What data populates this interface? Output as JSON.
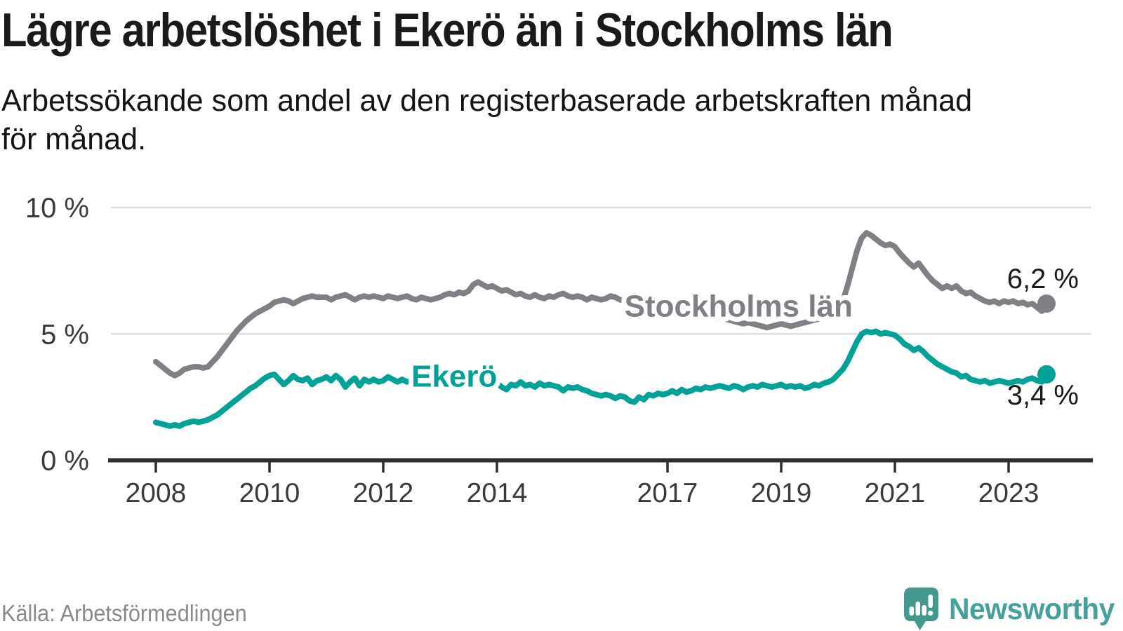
{
  "title": "Lägre arbetslöshet i Ekerö än i Stockholms län",
  "subtitle": "Arbetssökande som andel av den registerbaserade arbetskraften månad\nför månad.",
  "source": "Källa: Arbetsförmedlingen",
  "branding": {
    "wordmark": "Newsworthy",
    "wordmark_color": "#43a09b",
    "bubble_color": "#44998f"
  },
  "colors": {
    "axis": "#2e2e2e",
    "grid": "#dedede",
    "tick_text": "#3a3a3a",
    "annotation_text": "#1a1a1a"
  },
  "chart_data": {
    "type": "line",
    "title": "Lägre arbetslöshet i Ekerö än i Stockholms län",
    "subtitle": "Arbetssökande som andel av den registerbaserade arbetskraften månad för månad.",
    "x_unit": "month",
    "x_start": "2008-01",
    "x_end": "2023-09",
    "xlim": [
      2008,
      2023.75
    ],
    "ylim": [
      0,
      10
    ],
    "grid": "horizontal",
    "x_ticks": [
      2008,
      2010,
      2012,
      2014,
      2017,
      2019,
      2021,
      2023
    ],
    "y_ticks": [
      {
        "value": 0,
        "label": "0 %"
      },
      {
        "value": 5,
        "label": "5 %"
      },
      {
        "value": 10,
        "label": "10 %"
      }
    ],
    "series": [
      {
        "name": "Stockholms län",
        "color": "#7f7f85",
        "end_label": "6,2 %",
        "end_value": 6.2,
        "label_anchor": {
          "year": 2018.25,
          "pct": 6.1
        },
        "values": [
          3.9,
          3.75,
          3.6,
          3.45,
          3.35,
          3.45,
          3.6,
          3.65,
          3.7,
          3.7,
          3.65,
          3.7,
          3.9,
          4.1,
          4.35,
          4.6,
          4.85,
          5.1,
          5.3,
          5.5,
          5.65,
          5.8,
          5.9,
          6.0,
          6.1,
          6.25,
          6.3,
          6.35,
          6.3,
          6.2,
          6.3,
          6.4,
          6.45,
          6.5,
          6.45,
          6.45,
          6.45,
          6.35,
          6.45,
          6.5,
          6.55,
          6.45,
          6.35,
          6.45,
          6.5,
          6.45,
          6.5,
          6.45,
          6.4,
          6.5,
          6.45,
          6.4,
          6.45,
          6.5,
          6.4,
          6.35,
          6.45,
          6.4,
          6.35,
          6.4,
          6.45,
          6.55,
          6.6,
          6.55,
          6.65,
          6.6,
          6.7,
          6.95,
          7.05,
          6.95,
          6.85,
          6.9,
          6.8,
          6.7,
          6.75,
          6.65,
          6.55,
          6.6,
          6.5,
          6.45,
          6.55,
          6.45,
          6.4,
          6.5,
          6.45,
          6.55,
          6.6,
          6.5,
          6.45,
          6.5,
          6.45,
          6.35,
          6.45,
          6.4,
          6.35,
          6.4,
          6.5,
          6.45,
          6.35,
          6.3,
          6.25,
          6.3,
          6.2,
          6.15,
          6.1,
          6.05,
          6.0,
          6.05,
          6.0,
          5.95,
          5.9,
          5.85,
          5.8,
          5.85,
          5.8,
          5.75,
          5.7,
          5.65,
          5.6,
          5.65,
          5.6,
          5.55,
          5.5,
          5.45,
          5.4,
          5.45,
          5.4,
          5.35,
          5.3,
          5.25,
          5.3,
          5.35,
          5.4,
          5.35,
          5.3,
          5.35,
          5.4,
          5.45,
          5.5,
          5.55,
          5.6,
          5.65,
          5.7,
          5.8,
          6.0,
          6.3,
          6.9,
          7.6,
          8.3,
          8.8,
          9.0,
          8.9,
          8.75,
          8.6,
          8.5,
          8.55,
          8.45,
          8.2,
          8.0,
          7.8,
          7.65,
          7.8,
          7.55,
          7.3,
          7.1,
          6.95,
          6.8,
          6.9,
          6.8,
          6.9,
          6.7,
          6.6,
          6.65,
          6.5,
          6.4,
          6.3,
          6.25,
          6.3,
          6.2,
          6.3,
          6.25,
          6.3,
          6.2,
          6.25,
          6.15,
          6.2,
          6.05,
          5.9,
          6.2
        ]
      },
      {
        "name": "Ekerö",
        "color": "#00a298",
        "end_label": "3,4 %",
        "end_value": 3.4,
        "label_anchor": {
          "year": 2013.25,
          "pct": 3.33
        },
        "values": [
          1.5,
          1.45,
          1.4,
          1.35,
          1.4,
          1.35,
          1.45,
          1.5,
          1.55,
          1.5,
          1.55,
          1.6,
          1.7,
          1.8,
          1.95,
          2.1,
          2.25,
          2.4,
          2.55,
          2.7,
          2.85,
          2.95,
          3.1,
          3.25,
          3.35,
          3.4,
          3.2,
          3.0,
          3.15,
          3.35,
          3.2,
          3.15,
          3.25,
          3.0,
          3.15,
          3.2,
          3.3,
          3.15,
          3.35,
          3.2,
          2.9,
          3.1,
          3.25,
          2.95,
          3.2,
          3.1,
          3.2,
          3.1,
          3.15,
          3.3,
          3.2,
          3.1,
          3.2,
          3.1,
          3.15,
          3.05,
          3.1,
          3.15,
          3.05,
          3.1,
          3.15,
          3.1,
          3.2,
          3.1,
          3.05,
          3.1,
          3.05,
          3.0,
          3.05,
          3.1,
          3.0,
          3.05,
          3.05,
          2.9,
          2.8,
          3.0,
          2.95,
          3.1,
          2.95,
          3.0,
          2.9,
          3.05,
          2.95,
          3.0,
          2.95,
          2.9,
          2.75,
          2.9,
          2.85,
          2.9,
          2.8,
          2.75,
          2.65,
          2.6,
          2.55,
          2.6,
          2.55,
          2.45,
          2.55,
          2.5,
          2.35,
          2.3,
          2.5,
          2.4,
          2.6,
          2.55,
          2.65,
          2.6,
          2.65,
          2.75,
          2.65,
          2.8,
          2.7,
          2.75,
          2.85,
          2.8,
          2.9,
          2.85,
          2.9,
          2.95,
          2.9,
          2.85,
          2.95,
          2.9,
          2.8,
          2.9,
          2.95,
          2.9,
          3.0,
          2.95,
          2.9,
          2.95,
          3.0,
          2.9,
          2.95,
          2.9,
          2.95,
          2.85,
          2.9,
          3.0,
          2.95,
          3.05,
          3.1,
          3.2,
          3.4,
          3.6,
          3.9,
          4.3,
          4.7,
          5.0,
          5.1,
          5.05,
          5.1,
          5.0,
          5.05,
          5.0,
          4.95,
          4.8,
          4.6,
          4.5,
          4.35,
          4.45,
          4.3,
          4.1,
          3.95,
          3.8,
          3.7,
          3.6,
          3.5,
          3.45,
          3.3,
          3.35,
          3.2,
          3.15,
          3.1,
          3.15,
          3.05,
          3.1,
          3.15,
          3.1,
          3.05,
          3.1,
          3.15,
          3.1,
          3.2,
          3.25,
          3.15,
          3.1,
          3.4
        ]
      }
    ]
  }
}
